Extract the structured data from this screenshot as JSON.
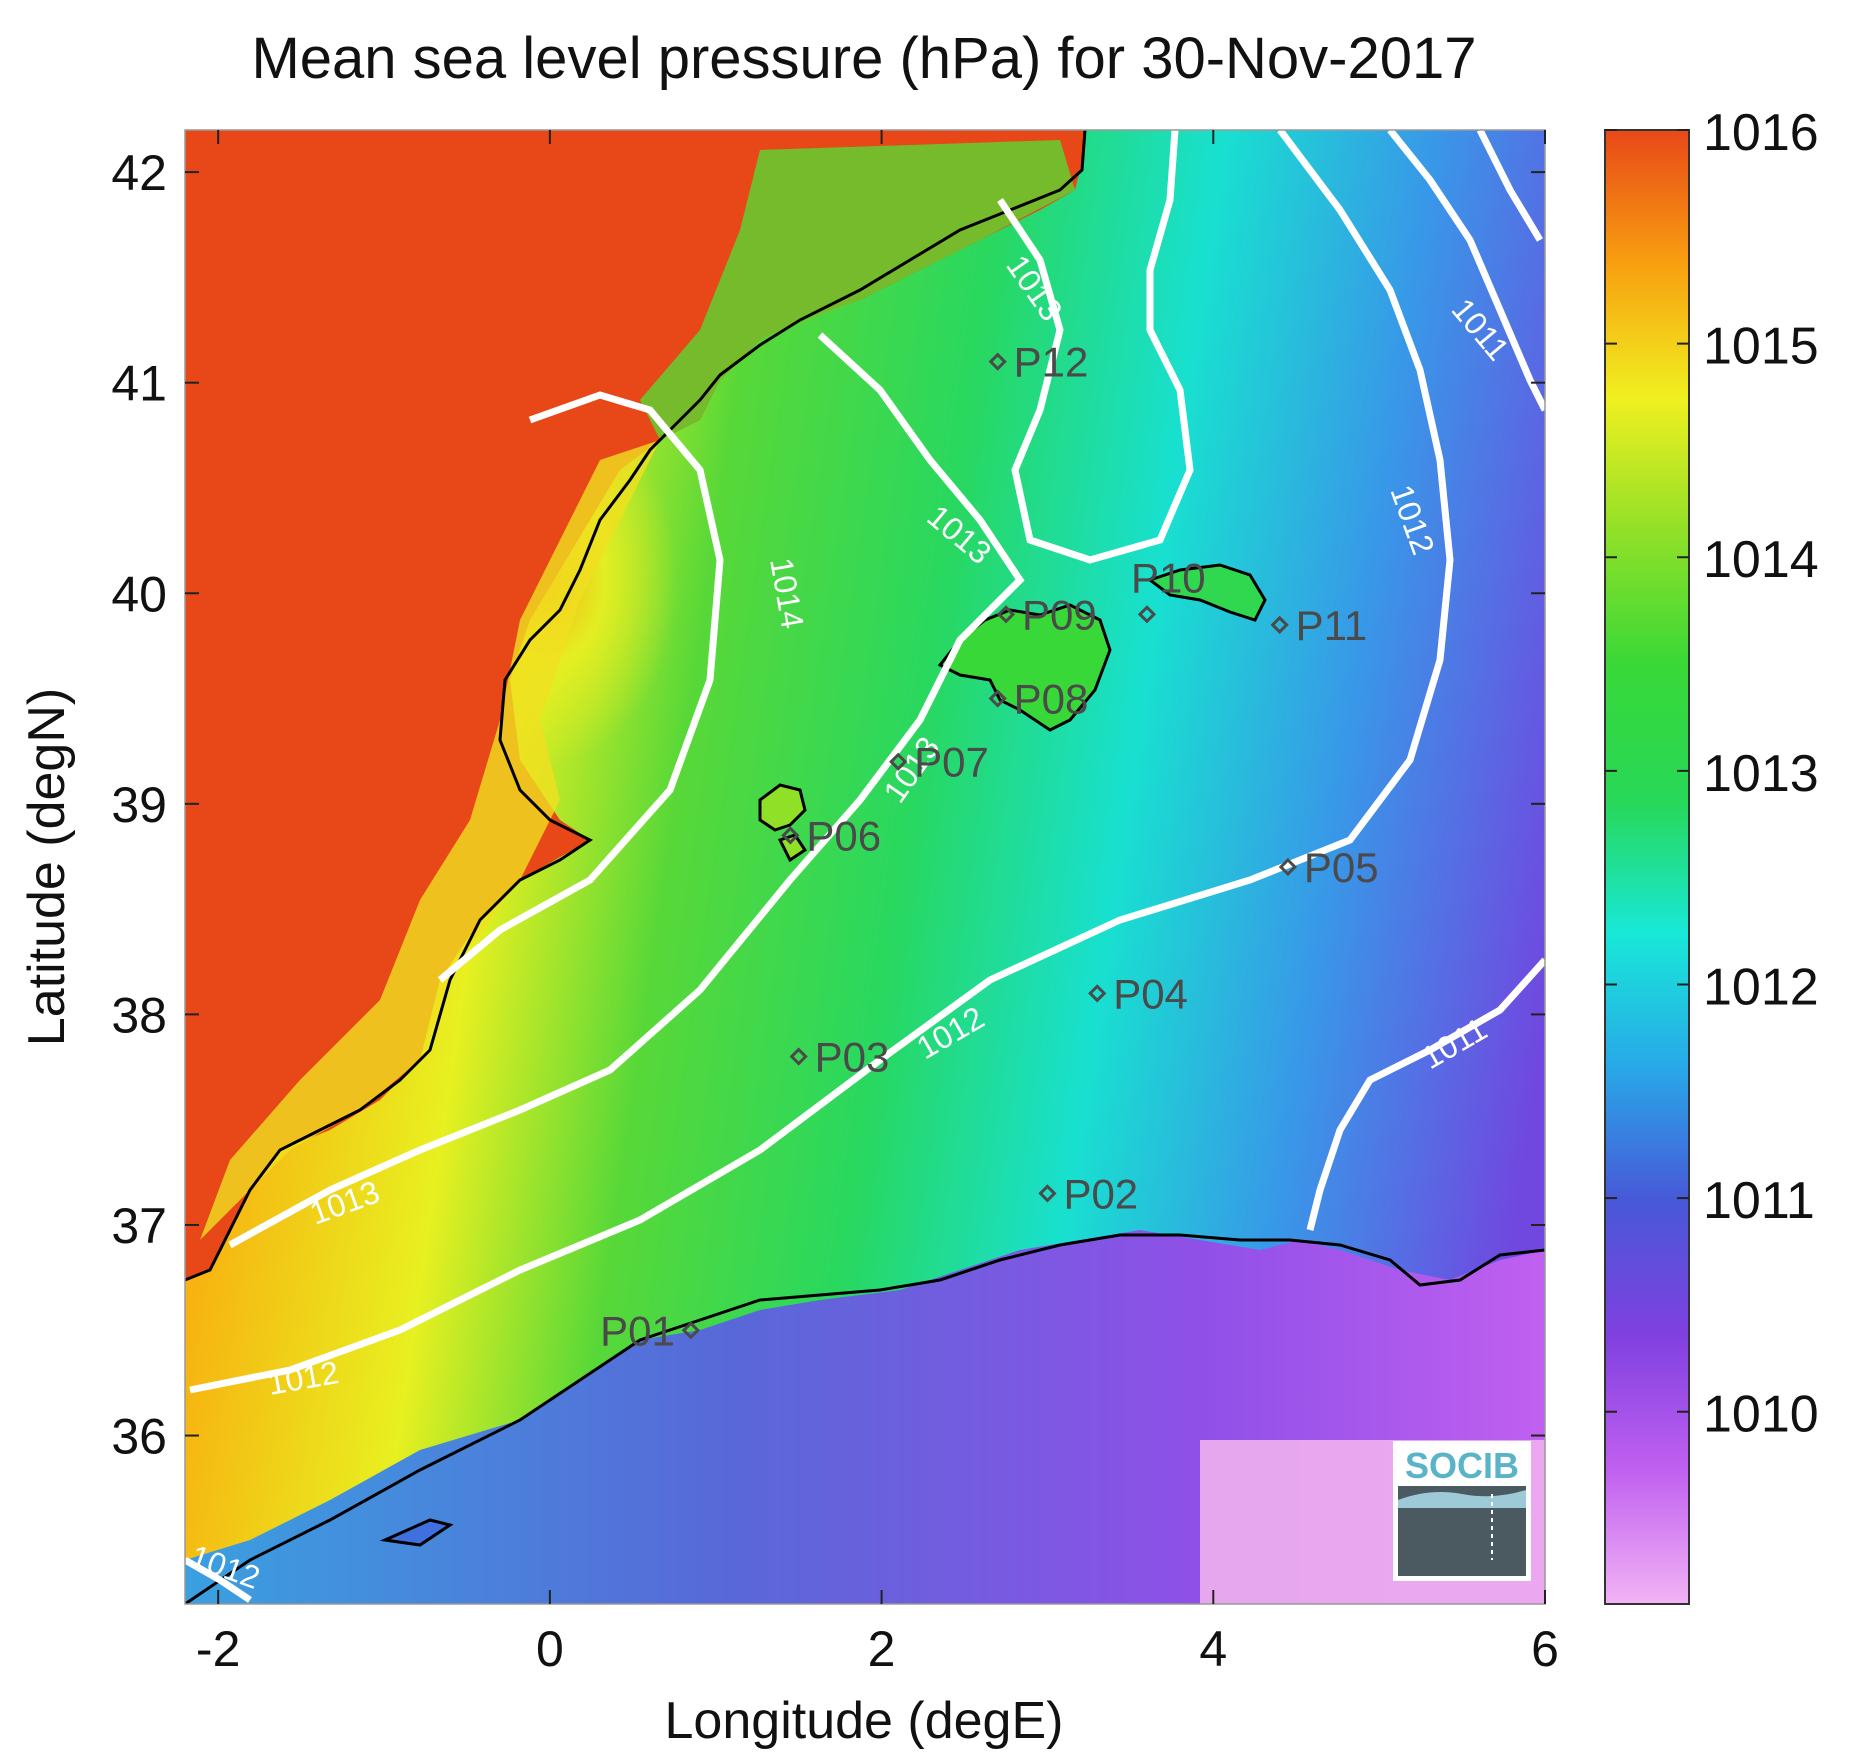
{
  "title": "Mean sea level pressure (hPa) for 30-Nov-2017",
  "xlabel": "Longitude (degE)",
  "ylabel": "Latitude (degN)",
  "logo_text": "SOCIB",
  "chart_data": {
    "type": "heatmap",
    "title": "Mean sea level pressure (hPa) for 30-Nov-2017",
    "xlabel": "Longitude (degE)",
    "ylabel": "Latitude (degN)",
    "xlim": [
      -2.2,
      6.0
    ],
    "ylim": [
      35.2,
      42.2
    ],
    "x_ticks": [
      -2,
      0,
      2,
      4,
      6
    ],
    "y_ticks": [
      36,
      37,
      38,
      39,
      40,
      41,
      42
    ],
    "colorbar": {
      "min": 1009.1,
      "max": 1016,
      "ticks": [
        1010,
        1011,
        1012,
        1013,
        1014,
        1015,
        1016
      ],
      "colors": [
        "#f2b3f5",
        "#c060f0",
        "#8040e0",
        "#4858d8",
        "#28a8e8",
        "#18e8d8",
        "#28d858",
        "#38d838",
        "#90e028",
        "#f0f020",
        "#f8a010",
        "#e84818"
      ]
    },
    "land_color": "#e84818",
    "coastline_color": "#000000",
    "contour_levels": [
      {
        "value": 1014,
        "label": "1014"
      },
      {
        "value": 1013,
        "label": "1013"
      },
      {
        "value": 1012,
        "label": "1012"
      },
      {
        "value": 1011,
        "label": "1011"
      }
    ],
    "stations": [
      {
        "name": "P01",
        "lon": 0.85,
        "lat": 36.5
      },
      {
        "name": "P02",
        "lon": 3.0,
        "lat": 37.15
      },
      {
        "name": "P03",
        "lon": 1.5,
        "lat": 37.8
      },
      {
        "name": "P04",
        "lon": 3.3,
        "lat": 38.1
      },
      {
        "name": "P05",
        "lon": 4.45,
        "lat": 38.7
      },
      {
        "name": "P06",
        "lon": 1.45,
        "lat": 38.85
      },
      {
        "name": "P07",
        "lon": 2.1,
        "lat": 39.2
      },
      {
        "name": "P08",
        "lon": 2.7,
        "lat": 39.5
      },
      {
        "name": "P09",
        "lon": 2.75,
        "lat": 39.9
      },
      {
        "name": "P10",
        "lon": 3.6,
        "lat": 39.9
      },
      {
        "name": "P11",
        "lon": 4.4,
        "lat": 39.85
      },
      {
        "name": "P12",
        "lon": 2.7,
        "lat": 41.1
      }
    ]
  }
}
